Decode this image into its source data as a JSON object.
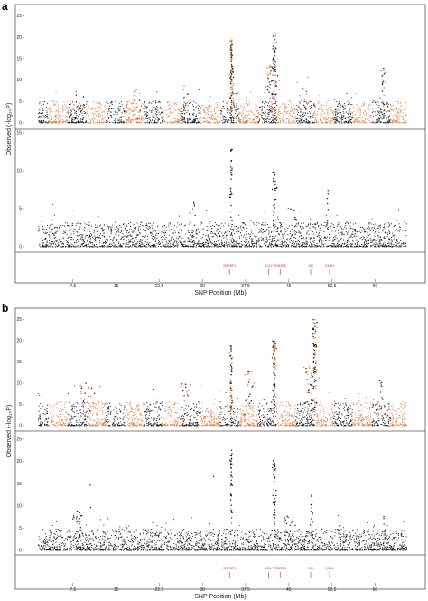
{
  "chart_data": [
    {
      "panel_label": "a",
      "type": "scatter",
      "subtype": "manhattan",
      "xlabel": "SNP Position (Mb)",
      "ylabel": "Observed (-log₁₀P)",
      "x_ticks": [
        "7.5",
        "15",
        "22.5",
        "30",
        "37.5",
        "45",
        "52.5",
        "60"
      ],
      "xlim": [
        0,
        67
      ],
      "genes": [
        {
          "name": "SREBF1",
          "pos": 34.7
        },
        {
          "name": "ACLY",
          "pos": 41.5
        },
        {
          "name": "STAT5A",
          "pos": 43.5
        },
        {
          "name": "GH",
          "pos": 48.8
        },
        {
          "name": "FASN",
          "pos": 52.1
        }
      ],
      "series": [
        {
          "color": "#e8773a",
          "alt_color": "#111111",
          "y_ticks": [
            "0",
            "5",
            "10",
            "15",
            "20",
            "25"
          ],
          "ylim": [
            0,
            27
          ],
          "base_max": 3.2,
          "peaks": [
            {
              "x": 35.0,
              "y": 20.0,
              "width": 0.35,
              "density": 70
            },
            {
              "x": 35.2,
              "y": 13.5,
              "width": 0.8,
              "density": 40
            },
            {
              "x": 42.5,
              "y": 21.0,
              "width": 0.6,
              "density": 70
            },
            {
              "x": 42.0,
              "y": 14.0,
              "width": 1.8,
              "density": 60
            },
            {
              "x": 47.5,
              "y": 11.0,
              "width": 1.5,
              "density": 20
            },
            {
              "x": 61.5,
              "y": 13.0,
              "width": 0.6,
              "density": 25
            },
            {
              "x": 27.0,
              "y": 9.5,
              "width": 1.2,
              "density": 12
            },
            {
              "x": 18.5,
              "y": 8.0,
              "width": 2.5,
              "density": 15
            },
            {
              "x": 9.0,
              "y": 7.5,
              "width": 3.0,
              "density": 14
            }
          ]
        },
        {
          "color": "#111111",
          "y_ticks": [
            "0",
            "5",
            "10",
            "15"
          ],
          "ylim": [
            0,
            15
          ],
          "base_max": 2.0,
          "peaks": [
            {
              "x": 35.0,
              "y": 13.5,
              "width": 0.35,
              "density": 35
            },
            {
              "x": 42.5,
              "y": 10.0,
              "width": 0.6,
              "density": 30
            },
            {
              "x": 51.8,
              "y": 9.0,
              "width": 0.3,
              "density": 8
            },
            {
              "x": 28.5,
              "y": 6.5,
              "width": 0.6,
              "density": 8
            },
            {
              "x": 46.0,
              "y": 5.0,
              "width": 1.5,
              "density": 12
            }
          ]
        }
      ]
    },
    {
      "panel_label": "b",
      "type": "scatter",
      "subtype": "manhattan",
      "xlabel": "SNP Position (Mb)",
      "ylabel": "Observed (-log₁₀P)",
      "x_ticks": [
        "7.5",
        "15",
        "22.5",
        "30",
        "37.5",
        "45",
        "52.5",
        "60"
      ],
      "xlim": [
        0,
        67
      ],
      "genes": [
        {
          "name": "SREBF1",
          "pos": 34.7
        },
        {
          "name": "ACLY",
          "pos": 41.5
        },
        {
          "name": "STAT5A",
          "pos": 43.5
        },
        {
          "name": "GH",
          "pos": 48.8
        },
        {
          "name": "FASN",
          "pos": 52.1
        }
      ],
      "series": [
        {
          "color": "#e8773a",
          "alt_color": "#111111",
          "y_ticks": [
            "0",
            "5",
            "10",
            "15",
            "20",
            "25"
          ],
          "ylim": [
            0,
            27
          ],
          "base_max": 3.5,
          "peaks": [
            {
              "x": 35.0,
              "y": 19.0,
              "width": 0.35,
              "density": 60
            },
            {
              "x": 42.5,
              "y": 20.0,
              "width": 0.5,
              "density": 80
            },
            {
              "x": 49.5,
              "y": 25.0,
              "width": 0.7,
              "density": 75
            },
            {
              "x": 49.0,
              "y": 14.0,
              "width": 2.0,
              "density": 50
            },
            {
              "x": 38.0,
              "y": 13.0,
              "width": 1.5,
              "density": 25
            },
            {
              "x": 10.0,
              "y": 10.0,
              "width": 3.0,
              "density": 25
            },
            {
              "x": 27.5,
              "y": 10.0,
              "width": 1.5,
              "density": 15
            },
            {
              "x": 61.0,
              "y": 12.0,
              "width": 0.8,
              "density": 15
            }
          ]
        },
        {
          "color": "#111111",
          "y_ticks": [
            "0",
            "5",
            "10",
            "15",
            "20",
            "25"
          ],
          "ylim": [
            0,
            26
          ],
          "base_max": 3.0,
          "peaks": [
            {
              "x": 35.0,
              "y": 23.0,
              "width": 0.35,
              "density": 40
            },
            {
              "x": 42.5,
              "y": 21.0,
              "width": 0.5,
              "density": 45
            },
            {
              "x": 49.0,
              "y": 13.0,
              "width": 0.5,
              "density": 20
            },
            {
              "x": 32.0,
              "y": 20.0,
              "width": 0.2,
              "density": 2
            },
            {
              "x": 8.5,
              "y": 9.0,
              "width": 2.0,
              "density": 25
            },
            {
              "x": 10.5,
              "y": 15.0,
              "width": 0.2,
              "density": 2
            },
            {
              "x": 61.5,
              "y": 8.0,
              "width": 0.6,
              "density": 10
            },
            {
              "x": 45.0,
              "y": 8.0,
              "width": 2.0,
              "density": 20
            }
          ]
        }
      ]
    }
  ]
}
